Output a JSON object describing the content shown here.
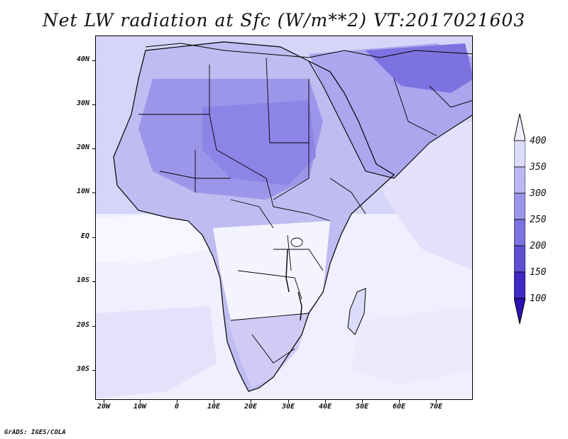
{
  "title": "Net LW radiation at Sfc (W/m**2) VT:2017021603",
  "credit": "GrADS: IGES/COLA",
  "map": {
    "field": "Net LW radiation at Sfc",
    "units": "W/m**2",
    "valid_time": "2017021603",
    "lat_range": [
      "36S",
      "45N"
    ],
    "lon_range": [
      "23W",
      "80E"
    ],
    "lat_labels": [
      "40N",
      "30N",
      "20N",
      "10N",
      "EQ",
      "10S",
      "20S",
      "30S"
    ],
    "lon_labels": [
      "20W",
      "10W",
      "0",
      "10E",
      "20E",
      "30E",
      "40E",
      "50E",
      "60E",
      "70E"
    ]
  },
  "colorbar": {
    "labels": [
      "400",
      "350",
      "300",
      "250",
      "200",
      "150",
      "100"
    ],
    "colors": [
      "#f0f0ff",
      "#dcdcfa",
      "#bcb8f2",
      "#9c96ea",
      "#7c72e0",
      "#5e4fd2",
      "#3f2ac4",
      "#2a12b0"
    ]
  }
}
